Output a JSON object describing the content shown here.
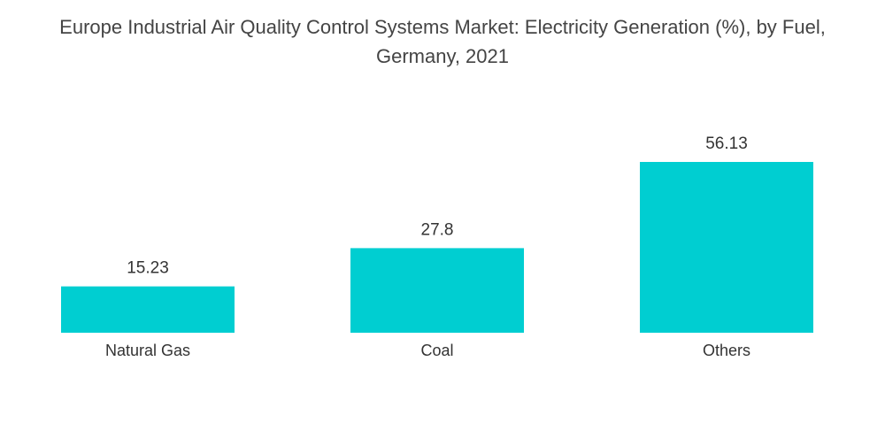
{
  "chart_data": {
    "type": "bar",
    "title_lines": [
      "Europe Industrial Air Quality Control Systems Market: Electricity Generation (%), by Fuel,",
      "Germany, 2021"
    ],
    "categories": [
      "Natural Gas",
      "Coal",
      "Others"
    ],
    "values": [
      15.23,
      27.8,
      56.13
    ],
    "value_labels": [
      "15.23",
      "27.8",
      "56.13"
    ],
    "xlabel": "",
    "ylabel": "",
    "ylim": [
      0,
      56.13
    ],
    "grid": false,
    "legend": "none",
    "bar_color": "#00CED1"
  }
}
